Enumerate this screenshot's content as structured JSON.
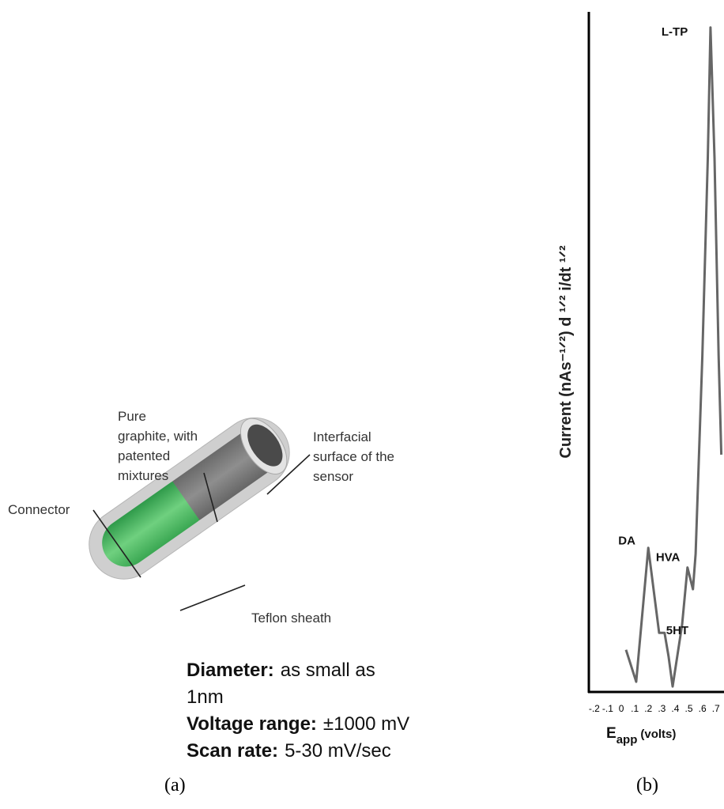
{
  "panel_a": {
    "labels": {
      "graphite": [
        "Pure",
        "graphite, with",
        "patented",
        "mixtures"
      ],
      "interfacial": [
        "Interfacial",
        "surface of the",
        "sensor"
      ],
      "connector": "Connector",
      "teflon": "Teflon sheath"
    },
    "specs": [
      {
        "name": "Diameter:",
        "value_lines": [
          "as small as",
          "1nm"
        ]
      },
      {
        "name": "Voltage range:",
        "value_lines": [
          "±1000 mV"
        ]
      },
      {
        "name": "Scan rate:",
        "value_lines": [
          "5-30 mV/sec"
        ]
      }
    ],
    "caption": "(a)"
  },
  "chart_data": {
    "type": "line",
    "y_label": "Current (nAs⁻¹ᐟ²) d ¹ᐟ² i/dt ¹ᐟ²",
    "x_label": {
      "main": "E",
      "sub": "app",
      "unit": "(volts)"
    },
    "x": [
      0.035,
      0.11,
      0.2,
      0.28,
      0.32,
      0.35,
      0.38,
      0.45,
      0.49,
      0.53,
      0.55,
      0.6,
      0.64,
      0.66,
      0.69,
      0.72,
      0.74
    ],
    "values": [
      6.2,
      1.5,
      21.2,
      8.7,
      8.7,
      5.2,
      0.8,
      9.9,
      18.3,
      15.1,
      20.3,
      49.4,
      78.5,
      97.7,
      78.5,
      49.4,
      34.9
    ],
    "color": "#666666",
    "xlim": [
      -0.24,
      0.76
    ],
    "ylim": [
      0,
      100
    ],
    "xticks": [
      {
        "value": -0.2,
        "label": "-.2"
      },
      {
        "value": -0.1,
        "label": "-.1"
      },
      0,
      {
        "value": 0.1,
        "label": ".1"
      },
      {
        "value": 0.2,
        "label": ".2"
      },
      {
        "value": 0.3,
        "label": ".3"
      },
      {
        "value": 0.4,
        "label": ".4"
      },
      {
        "value": 0.5,
        "label": ".5"
      },
      {
        "value": 0.6,
        "label": ".6"
      },
      {
        "value": 0.7,
        "label": ".7"
      }
    ],
    "annotations": [
      {
        "text": "L-TP",
        "x": 0.66,
        "y": 97.7
      },
      {
        "text": "DA",
        "x": 0.2,
        "y": 21.2
      },
      {
        "text": "HVA",
        "x": 0.49,
        "y": 18.3
      },
      {
        "text": "5HT",
        "x": 0.32,
        "y": 8.7
      }
    ],
    "caption": "(b)"
  }
}
